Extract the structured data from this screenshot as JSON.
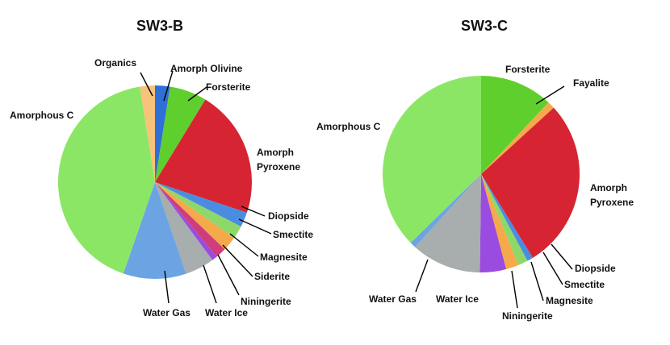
{
  "chart_data": [
    {
      "type": "pie",
      "title": "SW3-B",
      "slices": [
        {
          "name": "Amorph Olivine",
          "value": 2.5,
          "color": "#2e6fd8"
        },
        {
          "name": "Forsterite",
          "value": 6.2,
          "color": "#5fcf2e"
        },
        {
          "name": "Amorph Pyroxene",
          "value": 21.4,
          "color": "#d62433"
        },
        {
          "name": "Diopside",
          "value": 2.5,
          "color": "#4a8de0"
        },
        {
          "name": "Smectite",
          "value": 2.2,
          "color": "#8ed86a"
        },
        {
          "name": "Magnesite",
          "value": 2.4,
          "color": "#f5a94a"
        },
        {
          "name": "Siderite",
          "value": 1.8,
          "color": "#cf3e7a"
        },
        {
          "name": "Niningerite",
          "value": 0.9,
          "color": "#9a4be0"
        },
        {
          "name": "Water Ice",
          "value": 4.9,
          "color": "#a8adad"
        },
        {
          "name": "Water Gas",
          "value": 10.5,
          "color": "#6ca4e3"
        },
        {
          "name": "Amorphous C",
          "value": 42.2,
          "color": "#8ce665"
        },
        {
          "name": "Organics",
          "value": 2.5,
          "color": "#f7c27a"
        }
      ]
    },
    {
      "type": "pie",
      "title": "SW3-C",
      "slices": [
        {
          "name": "Forsterite",
          "value": 12.0,
          "color": "#5fcf2e"
        },
        {
          "name": "Fayalite",
          "value": 1.2,
          "color": "#f5a94a"
        },
        {
          "name": "Amorph Pyroxene",
          "value": 28.0,
          "color": "#d62433"
        },
        {
          "name": "Diopside",
          "value": 1.0,
          "color": "#4a8de0"
        },
        {
          "name": "Smectite",
          "value": 1.6,
          "color": "#8ed86a"
        },
        {
          "name": "Magnesite",
          "value": 2.1,
          "color": "#f5a94a"
        },
        {
          "name": "Niningerite",
          "value": 4.3,
          "color": "#9a4be0"
        },
        {
          "name": "Water Ice",
          "value": 11.5,
          "color": "#a8adad"
        },
        {
          "name": "Water Gas",
          "value": 1.0,
          "color": "#6ca4e3"
        },
        {
          "name": "Amorphous C",
          "value": 37.3,
          "color": "#8ce665"
        }
      ]
    }
  ],
  "labels_b": {
    "organics": "Organics",
    "amorph_olivine": "Amorph Olivine",
    "forsterite": "Forsterite",
    "amorphous_c": "Amorphous C",
    "amorph_pyroxene_1": "Amorph",
    "amorph_pyroxene_2": "Pyroxene",
    "diopside": "Diopside",
    "smectite": "Smectite",
    "magnesite": "Magnesite",
    "siderite": "Siderite",
    "niningerite": "Niningerite",
    "water_gas": "Water Gas",
    "water_ice": "Water Ice"
  },
  "labels_c": {
    "forsterite": "Forsterite",
    "fayalite": "Fayalite",
    "amorphous_c": "Amorphous C",
    "amorph_pyroxene_1": "Amorph",
    "amorph_pyroxene_2": "Pyroxene",
    "diopside": "Diopside",
    "smectite": "Smectite",
    "magnesite": "Magnesite",
    "niningerite": "Niningerite",
    "water_ice": "Water Ice",
    "water_gas": "Water Gas"
  }
}
